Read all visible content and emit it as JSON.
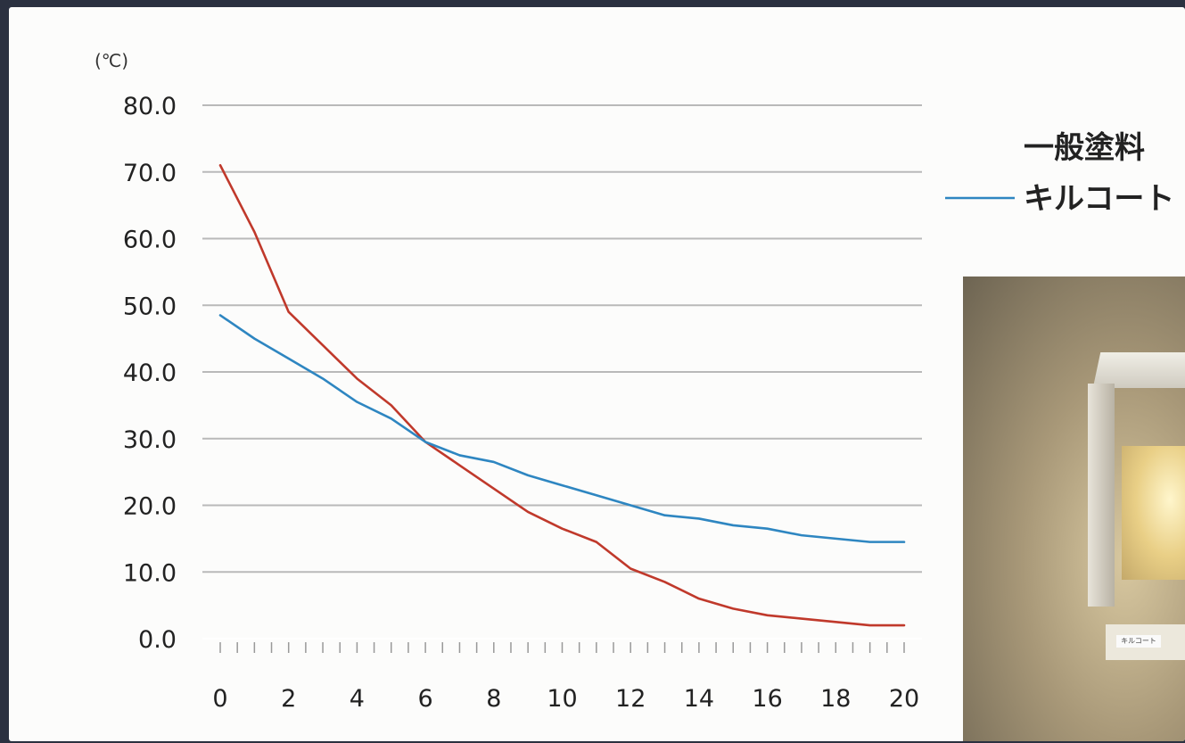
{
  "chart_data": {
    "type": "line",
    "unit_label": "(℃)",
    "x": [
      0,
      1,
      2,
      3,
      4,
      5,
      6,
      7,
      8,
      9,
      10,
      11,
      12,
      13,
      14,
      15,
      16,
      17,
      18,
      19,
      20
    ],
    "x_ticks": [
      "0",
      "2",
      "4",
      "6",
      "8",
      "10",
      "12",
      "14",
      "16",
      "18",
      "20"
    ],
    "y_ticks": [
      "80.0",
      "70.0",
      "60.0",
      "50.0",
      "40.0",
      "30.0",
      "20.0",
      "10.0",
      "0.0"
    ],
    "ylim": [
      0,
      80
    ],
    "xlim": [
      0,
      20
    ],
    "grid": true,
    "legend_placement": "right",
    "series": [
      {
        "name": "一般塗料",
        "color": "#c0392b",
        "values": [
          71.0,
          61.0,
          49.0,
          44.0,
          39.0,
          35.0,
          29.5,
          26.0,
          22.5,
          19.0,
          16.5,
          14.5,
          10.5,
          8.5,
          6.0,
          4.5,
          3.5,
          3.0,
          2.5,
          2.0,
          2.0
        ],
        "legend_has_line": false
      },
      {
        "name": "キルコート",
        "color": "#2e86c1",
        "values": [
          48.5,
          45.0,
          42.0,
          39.0,
          35.5,
          33.0,
          29.5,
          27.5,
          26.5,
          24.5,
          23.0,
          21.5,
          20.0,
          18.5,
          18.0,
          17.0,
          16.5,
          15.5,
          15.0,
          14.5,
          14.5
        ],
        "legend_has_line": true
      }
    ]
  },
  "photo": {
    "label": "キルコート"
  }
}
